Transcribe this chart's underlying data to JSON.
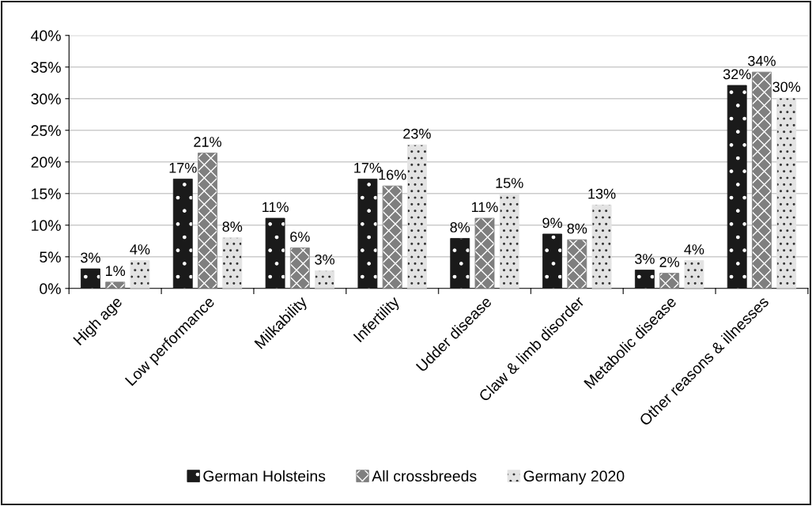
{
  "chart_data": {
    "type": "bar",
    "categories": [
      "High age",
      "Low performance",
      "Milkability",
      "Infertility",
      "Udder disease",
      "Claw & limb disorder",
      "Metabolic disease",
      "Other reasons & illnesses"
    ],
    "series": [
      {
        "name": "German Holsteins",
        "color": "#1a1a1a",
        "values": [
          3.1,
          17.3,
          11.1,
          17.3,
          7.9,
          8.6,
          2.9,
          32.1
        ],
        "value_labels": [
          "3%",
          "17%",
          "11%",
          "17%",
          "8%",
          "9%",
          "3%",
          "32%"
        ]
      },
      {
        "name": "All crossbreeds",
        "color": "#7f7f7f",
        "values": [
          1.0,
          21.4,
          6.4,
          16.2,
          11.1,
          7.7,
          2.4,
          34.2
        ],
        "value_labels": [
          "1%",
          "21%",
          "6%",
          "16%",
          "11%",
          "8%",
          "2%",
          "34%"
        ]
      },
      {
        "name": "Germany 2020",
        "color": "#e3e3e3",
        "values": [
          4.4,
          8.0,
          2.8,
          22.7,
          14.9,
          13.2,
          4.4,
          30.1
        ],
        "value_labels": [
          "4%",
          "8%",
          "3%",
          "23%",
          "15%",
          "13%",
          "4%",
          "30%"
        ]
      }
    ],
    "ylim": [
      0,
      40
    ],
    "yticks": [
      {
        "value": 0,
        "label": "0%"
      },
      {
        "value": 5,
        "label": "5%"
      },
      {
        "value": 10,
        "label": "10%"
      },
      {
        "value": 15,
        "label": "15%"
      },
      {
        "value": 20,
        "label": "20%"
      },
      {
        "value": 25,
        "label": "25%"
      },
      {
        "value": 30,
        "label": "30%"
      },
      {
        "value": 35,
        "label": "35%"
      },
      {
        "value": 40,
        "label": "40%"
      }
    ],
    "grid": "y",
    "legend": "bottom"
  }
}
